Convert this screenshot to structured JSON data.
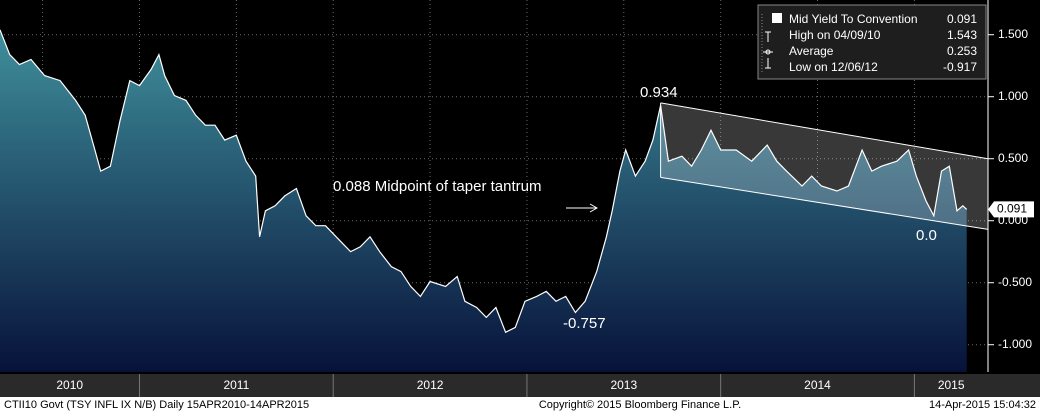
{
  "chart_data": {
    "type": "area",
    "annotations": [
      "0.934",
      "0.088 Midpoint of taper tantrum",
      "-0.757",
      "0.0"
    ],
    "legend": {
      "rows": [
        {
          "label": "Mid Yield To Convention",
          "value": 0.091
        },
        {
          "label": "High on 04/09/10",
          "value": 1.543
        },
        {
          "label": "Average",
          "value": 0.253
        },
        {
          "label": "Low on 12/06/12",
          "value": -0.917
        }
      ]
    },
    "year_labels": [
      "2010",
      "2011",
      "2012",
      "2013",
      "2014",
      "2015"
    ],
    "footer": {
      "left": "CTII10 Govt (TSY INFL IX N/B)  Daily 15APR2010-14APR2015",
      "center": "Copyright© 2015 Bloomberg Finance L.P.",
      "right": "14-Apr-2015 15:04:32"
    },
    "x": [
      2010.28,
      2010.33,
      2010.38,
      2010.44,
      2010.51,
      2010.59,
      2010.67,
      2010.72,
      2010.77,
      2010.8,
      2010.85,
      2010.9,
      2010.95,
      2011.0,
      2011.06,
      2011.1,
      2011.13,
      2011.18,
      2011.24,
      2011.29,
      2011.34,
      2011.39,
      2011.44,
      2011.5,
      2011.55,
      2011.6,
      2011.62,
      2011.65,
      2011.7,
      2011.75,
      2011.81,
      2011.86,
      2011.91,
      2011.96,
      2012.04,
      2012.09,
      2012.14,
      2012.19,
      2012.24,
      2012.3,
      2012.35,
      2012.4,
      2012.45,
      2012.5,
      2012.58,
      2012.64,
      2012.68,
      2012.74,
      2012.79,
      2012.84,
      2012.89,
      2012.94,
      2012.99,
      2013.05,
      2013.1,
      2013.15,
      2013.2,
      2013.25,
      2013.3,
      2013.36,
      2013.41,
      2013.44,
      2013.48,
      2013.51,
      2013.56,
      2013.61,
      2013.65,
      2013.69,
      2013.73,
      2013.8,
      2013.85,
      2013.9,
      2013.95,
      2014.0,
      2014.08,
      2014.16,
      2014.24,
      2014.29,
      2014.34,
      2014.42,
      2014.47,
      2014.52,
      2014.6,
      2014.66,
      2014.73,
      2014.78,
      2014.83,
      2014.91,
      2014.97,
      2015.01,
      2015.06,
      2015.1,
      2015.14,
      2015.18,
      2015.22,
      2015.25,
      2015.27
    ],
    "series": [
      {
        "name": "Mid Yield To Convention",
        "color": "#ffffff",
        "fill_top": "#3f8f9c",
        "fill_bottom": "#07123a",
        "values": [
          1.54,
          1.34,
          1.26,
          1.3,
          1.17,
          1.13,
          0.97,
          0.85,
          0.57,
          0.4,
          0.44,
          0.81,
          1.13,
          1.09,
          1.22,
          1.34,
          1.17,
          1.01,
          0.97,
          0.85,
          0.77,
          0.77,
          0.65,
          0.69,
          0.48,
          0.36,
          -0.13,
          0.08,
          0.12,
          0.2,
          0.26,
          0.04,
          -0.04,
          -0.04,
          -0.17,
          -0.25,
          -0.21,
          -0.13,
          -0.25,
          -0.37,
          -0.41,
          -0.53,
          -0.61,
          -0.49,
          -0.53,
          -0.45,
          -0.65,
          -0.7,
          -0.78,
          -0.7,
          -0.9,
          -0.86,
          -0.65,
          -0.61,
          -0.57,
          -0.65,
          -0.61,
          -0.74,
          -0.65,
          -0.41,
          -0.13,
          0.08,
          0.4,
          0.57,
          0.36,
          0.48,
          0.65,
          0.93,
          0.48,
          0.52,
          0.44,
          0.57,
          0.73,
          0.57,
          0.57,
          0.48,
          0.61,
          0.48,
          0.4,
          0.28,
          0.36,
          0.28,
          0.24,
          0.28,
          0.57,
          0.4,
          0.44,
          0.48,
          0.57,
          0.36,
          0.16,
          0.04,
          0.4,
          0.44,
          0.08,
          0.12,
          0.091
        ]
      }
    ],
    "channel": {
      "x": [
        2013.69,
        2015.38
      ],
      "upper": [
        0.95,
        0.5
      ],
      "lower": [
        0.35,
        -0.07
      ]
    },
    "xlim": [
      2010.28,
      2015.38
    ],
    "xticks": [
      2010.5,
      2011,
      2011.5,
      2012,
      2012.5,
      2013,
      2013.5,
      2014,
      2014.5,
      2015
    ],
    "ylim": [
      -1.22,
      1.78
    ],
    "yticks": [
      {
        "value": 1.5,
        "label": "1.500"
      },
      {
        "value": 1,
        "label": "1.000"
      },
      {
        "value": 0.5,
        "label": "0.500"
      },
      {
        "value": 0,
        "label": "0.000"
      },
      {
        "value": -0.5,
        "label": "-0.500"
      },
      {
        "value": -1,
        "label": "-1.000"
      }
    ],
    "grid": true
  }
}
